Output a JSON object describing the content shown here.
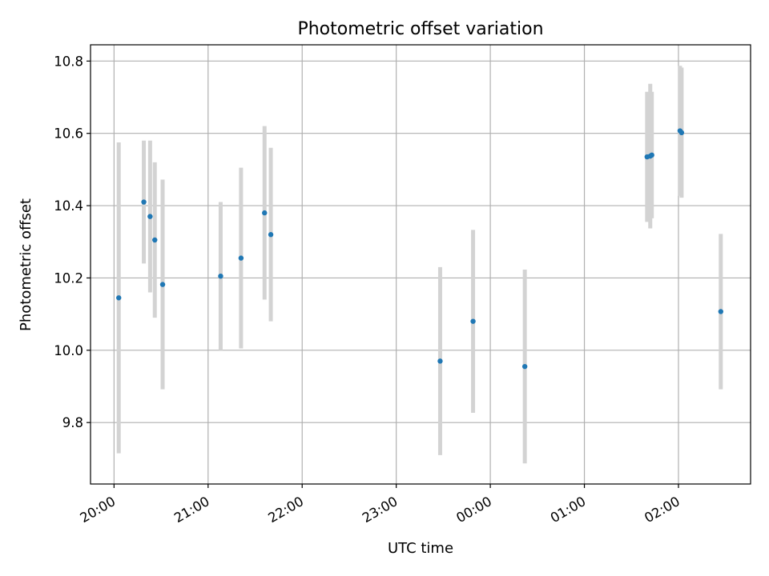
{
  "chart_data": {
    "type": "scatter",
    "title": "Photometric offset variation",
    "xlabel": "UTC time",
    "ylabel": "Photometric offset",
    "x_axis": {
      "kind": "time",
      "range": [
        "19:45",
        "02:46"
      ],
      "ticks": [
        "20:00",
        "21:00",
        "22:00",
        "23:00",
        "00:00",
        "01:00",
        "02:00"
      ]
    },
    "y_axis": {
      "range": [
        9.63,
        10.845
      ],
      "ticks": [
        9.8,
        10.0,
        10.2,
        10.4,
        10.6,
        10.8
      ],
      "tick_labels": [
        "9.8",
        "10.0",
        "10.2",
        "10.4",
        "10.6",
        "10.8"
      ]
    },
    "grid": true,
    "colors": {
      "points": "#1f77b4",
      "errorbars": "#d3d3d3",
      "grid": "#b0b0b0"
    },
    "series": [
      {
        "points": [
          {
            "x": "20:03",
            "y": 10.145,
            "err": 0.43
          },
          {
            "x": "20:19",
            "y": 10.41,
            "err": 0.17
          },
          {
            "x": "20:23",
            "y": 10.37,
            "err": 0.21
          },
          {
            "x": "20:26",
            "y": 10.305,
            "err": 0.215
          },
          {
            "x": "20:31",
            "y": 10.182,
            "err": 0.29
          },
          {
            "x": "21:08",
            "y": 10.205,
            "err": 0.205
          },
          {
            "x": "21:21",
            "y": 10.255,
            "err": 0.25
          },
          {
            "x": "21:36",
            "y": 10.38,
            "err": 0.24
          },
          {
            "x": "21:40",
            "y": 10.32,
            "err": 0.24
          },
          {
            "x": "23:28",
            "y": 9.97,
            "err": 0.26
          },
          {
            "x": "23:49",
            "y": 10.08,
            "err": 0.253
          },
          {
            "x": "00:22",
            "y": 9.955,
            "err": 0.268
          },
          {
            "x": "01:40",
            "y": 10.535,
            "err": 0.18
          },
          {
            "x": "01:42",
            "y": 10.537,
            "err": 0.2
          },
          {
            "x": "01:43",
            "y": 10.54,
            "err": 0.175
          },
          {
            "x": "02:01",
            "y": 10.607,
            "err": 0.18
          },
          {
            "x": "02:02",
            "y": 10.602,
            "err": 0.18
          },
          {
            "x": "02:27",
            "y": 10.107,
            "err": 0.215
          }
        ]
      }
    ]
  }
}
